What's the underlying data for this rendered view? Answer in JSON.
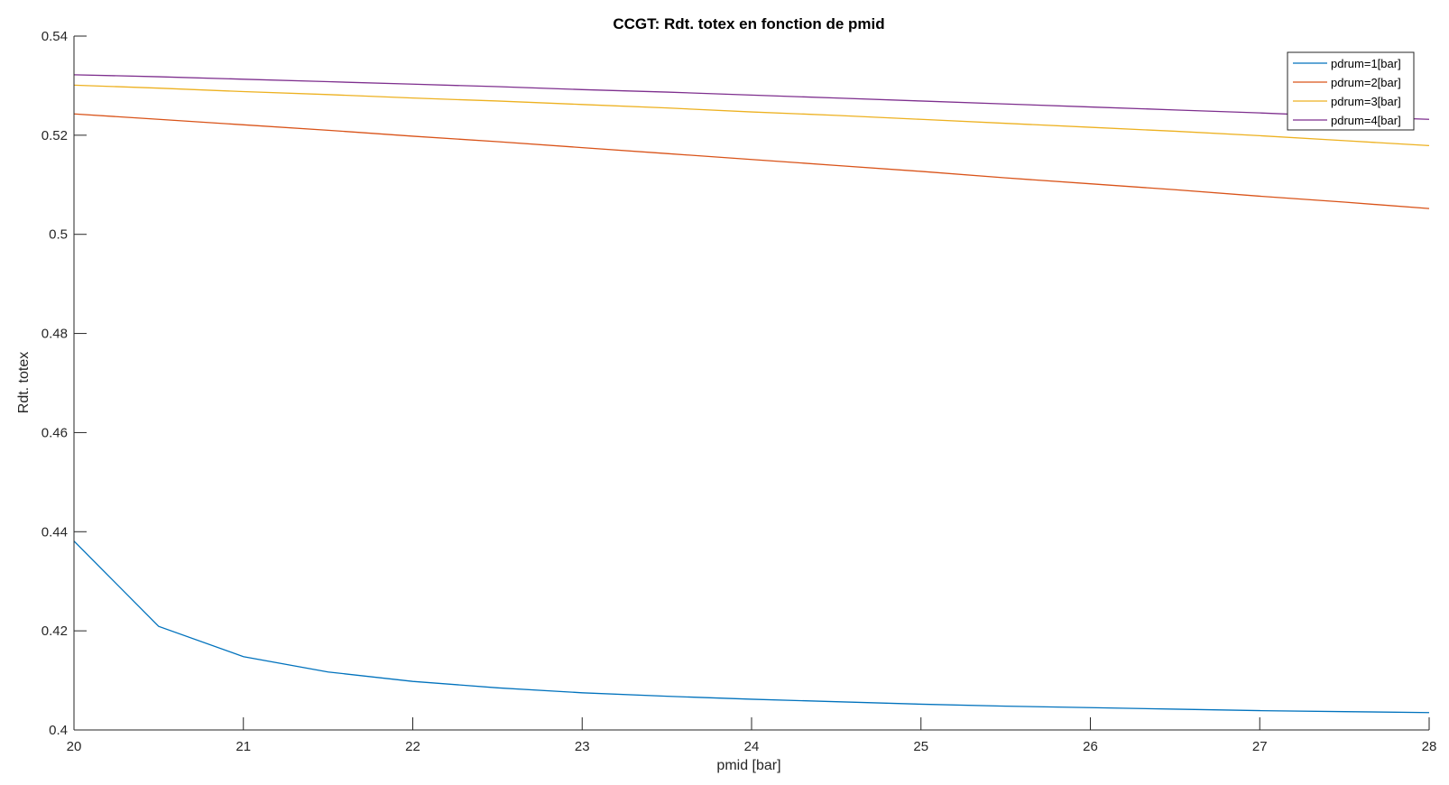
{
  "chart_data": {
    "type": "line",
    "title": "CCGT: Rdt. totex en fonction de pmid",
    "xlabel": "pmid [bar]",
    "ylabel": "Rdt. totex",
    "xlim": [
      20,
      28
    ],
    "ylim": [
      0.4,
      0.54
    ],
    "xticks": [
      20,
      21,
      22,
      23,
      24,
      25,
      26,
      27,
      28
    ],
    "xtick_labels": [
      "20",
      "21",
      "22",
      "23",
      "24",
      "25",
      "26",
      "27",
      "28"
    ],
    "yticks": [
      0.4,
      0.42,
      0.44,
      0.46,
      0.48,
      0.5,
      0.52,
      0.54
    ],
    "ytick_labels": [
      "0.4",
      "0.42",
      "0.44",
      "0.46",
      "0.48",
      "0.5",
      "0.52",
      "0.54"
    ],
    "grid": false,
    "legend_position": "top-right",
    "x": [
      20,
      20.5,
      21,
      21.5,
      22,
      22.5,
      23,
      23.5,
      24,
      24.5,
      25,
      25.5,
      26,
      26.5,
      27,
      27.5,
      28
    ],
    "series": [
      {
        "name": "pdrum=1[bar]",
        "color": "#0072BD",
        "values": [
          0.4381,
          0.4209,
          0.4148,
          0.4117,
          0.4098,
          0.4085,
          0.4075,
          0.4068,
          0.4062,
          0.4057,
          0.4052,
          0.4048,
          0.4045,
          0.4042,
          0.4039,
          0.4037,
          0.4035
        ]
      },
      {
        "name": "pdrum=2[bar]",
        "color": "#D95319",
        "values": [
          0.5243,
          0.5232,
          0.5221,
          0.521,
          0.5198,
          0.5187,
          0.5175,
          0.5163,
          0.5151,
          0.5139,
          0.5127,
          0.5114,
          0.5102,
          0.509,
          0.5077,
          0.5065,
          0.5052
        ]
      },
      {
        "name": "pdrum=3[bar]",
        "color": "#EDB120",
        "values": [
          0.5301,
          0.5295,
          0.5288,
          0.5282,
          0.5275,
          0.5269,
          0.5262,
          0.5255,
          0.5247,
          0.524,
          0.5232,
          0.5224,
          0.5216,
          0.5208,
          0.5199,
          0.5189,
          0.5179
        ]
      },
      {
        "name": "pdrum=4[bar]",
        "color": "#7E2F8E",
        "values": [
          0.5322,
          0.5318,
          0.5313,
          0.5308,
          0.5303,
          0.5298,
          0.5292,
          0.5287,
          0.5281,
          0.5275,
          0.5269,
          0.5263,
          0.5257,
          0.5251,
          0.5245,
          0.5238,
          0.5232
        ]
      }
    ]
  }
}
